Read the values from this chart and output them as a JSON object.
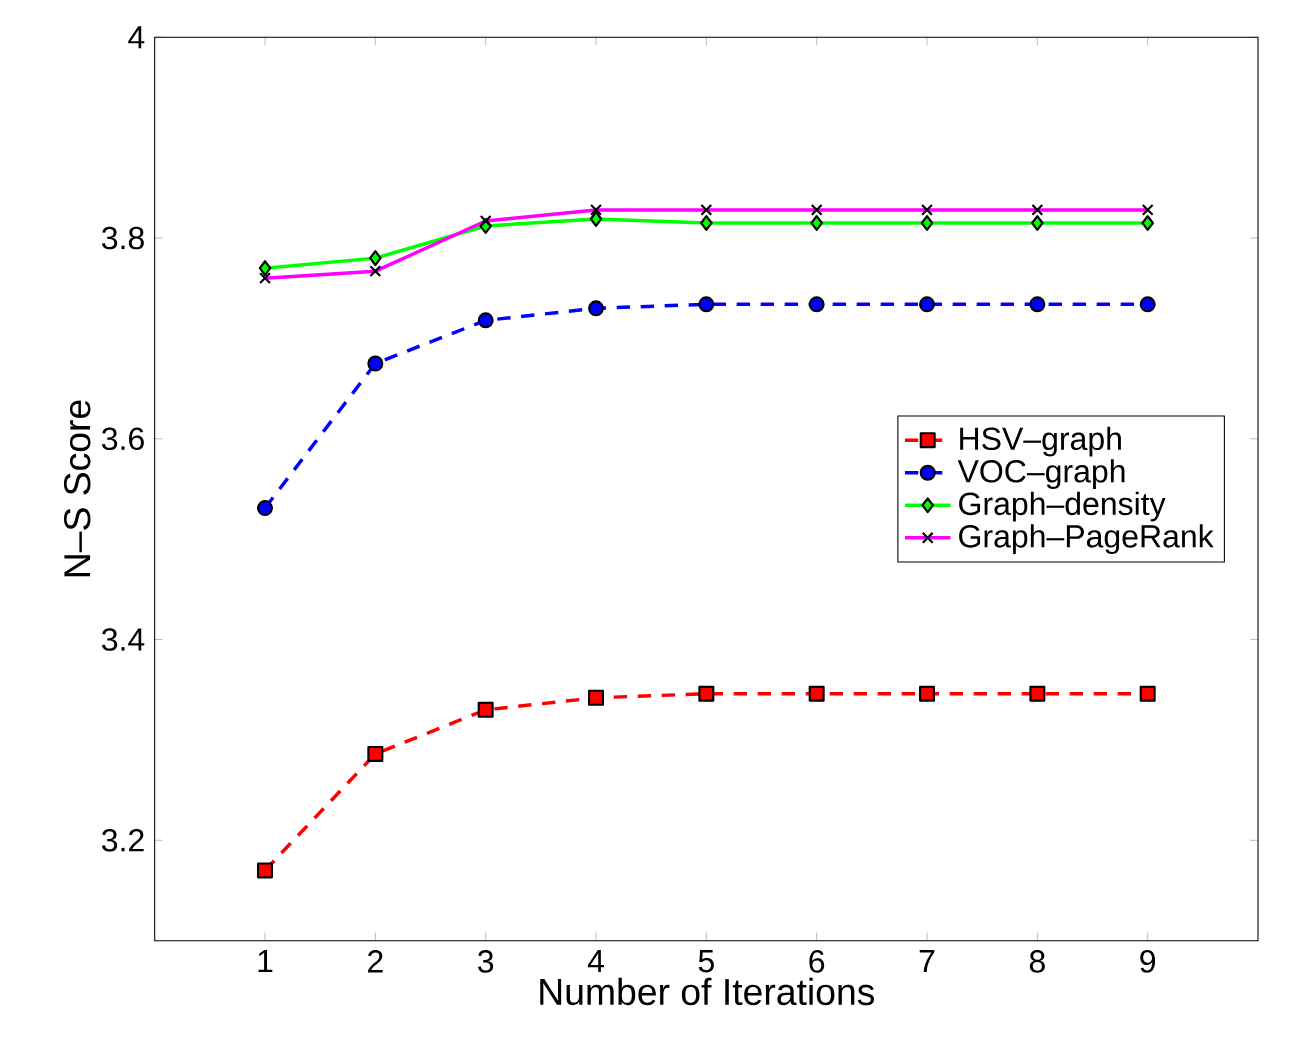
{
  "chart_data": {
    "type": "line",
    "xlabel": "Number of Iterations",
    "ylabel": "N–S Score",
    "x": [
      1,
      2,
      3,
      4,
      5,
      6,
      7,
      8,
      9
    ],
    "xlim": [
      0,
      10
    ],
    "xticks": [
      1,
      2,
      3,
      4,
      5,
      6,
      7,
      8,
      9
    ],
    "ylim": [
      3.1,
      4
    ],
    "yticks": [
      3.2,
      3.4,
      3.6,
      3.8,
      4
    ],
    "grid": false,
    "legend": "right",
    "series": [
      {
        "name": "HSV–graph",
        "color": "#ff0000",
        "marker": "square",
        "line_style": "dashed",
        "values": [
          3.17,
          3.286,
          3.33,
          3.342,
          3.346,
          3.346,
          3.346,
          3.346,
          3.346
        ]
      },
      {
        "name": "VOC–graph",
        "color": "#0000ff",
        "marker": "circle",
        "line_style": "dashed",
        "values": [
          3.531,
          3.675,
          3.718,
          3.73,
          3.734,
          3.734,
          3.734,
          3.734,
          3.734
        ]
      },
      {
        "name": "Graph–density",
        "color": "#00ff00",
        "marker": "diamond",
        "line_style": "solid",
        "values": [
          3.77,
          3.78,
          3.812,
          3.819,
          3.815,
          3.815,
          3.815,
          3.815,
          3.815
        ]
      },
      {
        "name": "Graph–PageRank",
        "color": "#ff00ff",
        "marker": "cross",
        "line_style": "solid",
        "values": [
          3.76,
          3.767,
          3.817,
          3.828,
          3.828,
          3.828,
          3.828,
          3.828,
          3.828
        ]
      }
    ]
  }
}
